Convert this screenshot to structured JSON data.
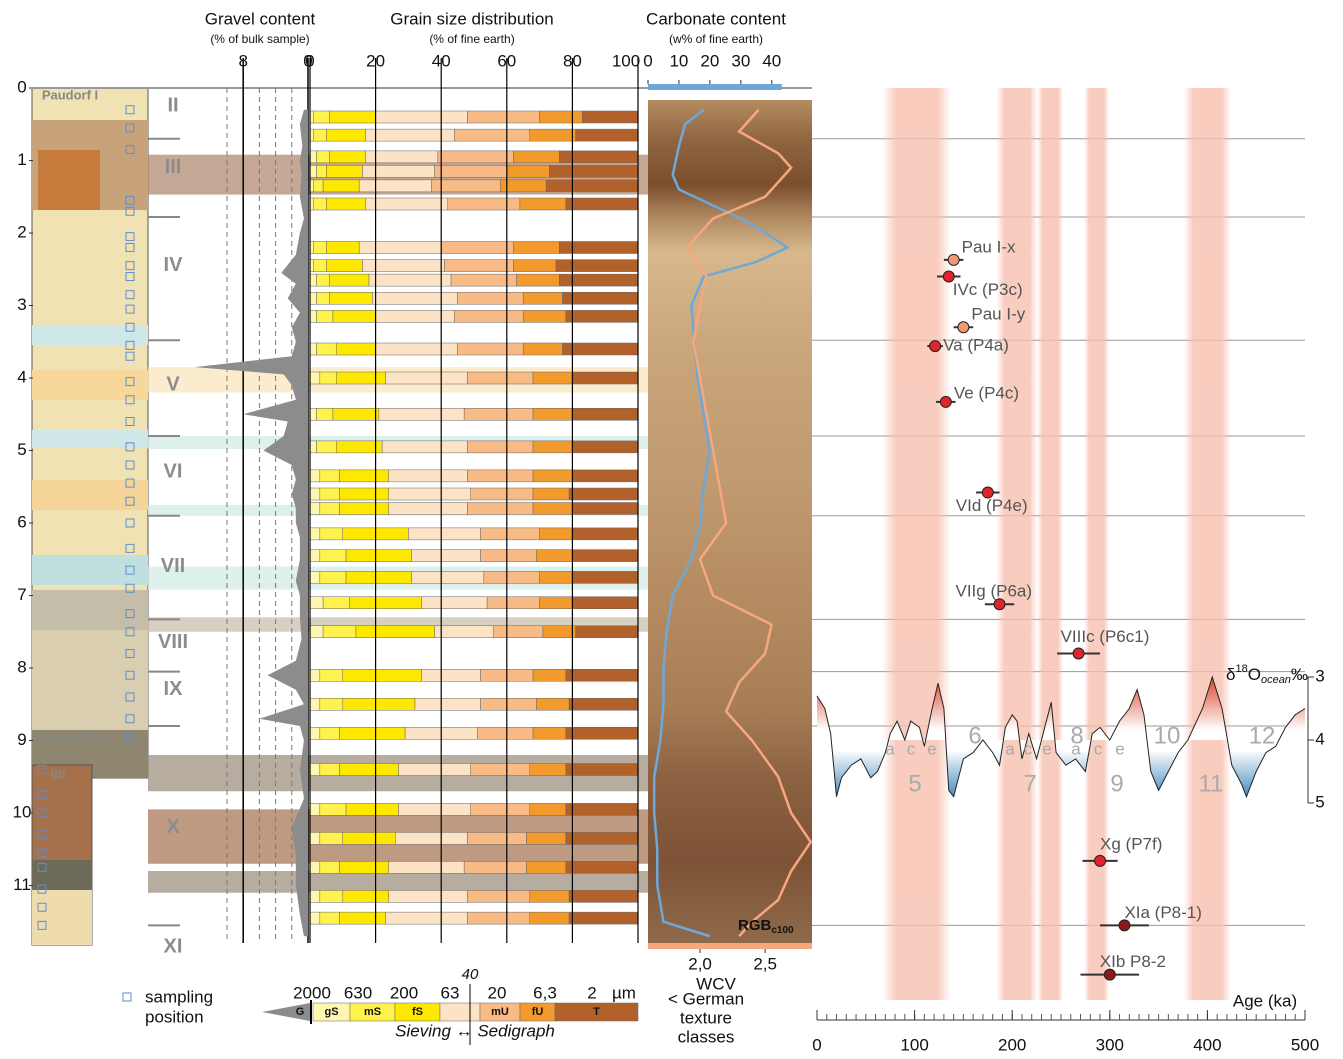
{
  "chart_data": [
    {
      "type": "area",
      "title": "Gravel content",
      "subtitle": "(% of bulk sample)",
      "name": "G",
      "color": "#8c8c8c",
      "xlim": [
        10,
        0
      ],
      "xticks": [
        8,
        0
      ],
      "xgrid": [
        10,
        6,
        4,
        2
      ],
      "ylim": [
        0,
        11.8
      ],
      "yticks": [
        0,
        1,
        2,
        3,
        4,
        5,
        6,
        7,
        8,
        9,
        10,
        11
      ],
      "y": [
        0.3,
        0.5,
        0.8,
        1.0,
        1.2,
        1.5,
        1.8,
        2.0,
        2.3,
        2.55,
        2.7,
        2.9,
        3.1,
        3.3,
        3.5,
        3.7,
        3.85,
        3.95,
        4.1,
        4.3,
        4.5,
        4.6,
        4.8,
        5.0,
        5.2,
        5.4,
        5.6,
        5.8,
        6.0,
        6.2,
        6.5,
        6.8,
        7.0,
        7.3,
        7.6,
        7.9,
        8.1,
        8.3,
        8.5,
        8.7,
        8.8,
        9.0,
        9.4,
        9.8,
        10.2,
        10.6,
        11.0,
        11.4,
        11.7
      ],
      "values": [
        0.5,
        1,
        0.7,
        1,
        0.8,
        1,
        0.5,
        1,
        1.5,
        3.3,
        1.5,
        2.5,
        1,
        2,
        1.5,
        2,
        14,
        3,
        2,
        1.5,
        8,
        2.5,
        3,
        5.5,
        2,
        1.5,
        2,
        1.5,
        1.5,
        1,
        1,
        1.5,
        1,
        1,
        0.8,
        1.5,
        5,
        1.5,
        0.5,
        6,
        1,
        0.5,
        1,
        0.5,
        2,
        1.5,
        1.5,
        1,
        0.5
      ]
    },
    {
      "type": "bar",
      "orientation": "horizontal",
      "stacked": true,
      "title": "Grain size distribution",
      "subtitle": "(% of fine earth)",
      "xlim": [
        0,
        100
      ],
      "xticks": [
        0,
        20,
        40,
        60,
        80,
        100
      ],
      "y": [
        0.4,
        0.65,
        0.95,
        1.15,
        1.35,
        1.6,
        2.2,
        2.45,
        2.65,
        2.9,
        3.15,
        3.6,
        4.0,
        4.5,
        4.95,
        5.35,
        5.6,
        5.8,
        6.15,
        6.45,
        6.75,
        7.1,
        7.5,
        8.1,
        8.5,
        8.9,
        9.4,
        9.95,
        10.35,
        10.75,
        11.15,
        11.45
      ],
      "series": [
        {
          "name": "gS",
          "color": "#fff6b0",
          "values": [
            1,
            1,
            2,
            2,
            1,
            1,
            1,
            1,
            2,
            2,
            2,
            2,
            3,
            2,
            2,
            3,
            3,
            3,
            3,
            3,
            3,
            4,
            4,
            3,
            3,
            3,
            3,
            3,
            3,
            3,
            3,
            3
          ]
        },
        {
          "name": "mS",
          "color": "#fff24d",
          "values": [
            5,
            4,
            4,
            3,
            3,
            4,
            4,
            4,
            4,
            4,
            5,
            6,
            5,
            5,
            6,
            6,
            6,
            6,
            7,
            8,
            8,
            8,
            10,
            7,
            7,
            6,
            6,
            8,
            7,
            6,
            7,
            6
          ]
        },
        {
          "name": "fS",
          "color": "#ffe800",
          "values": [
            14,
            12,
            11,
            11,
            11,
            12,
            10,
            11,
            12,
            13,
            13,
            12,
            15,
            14,
            14,
            15,
            15,
            15,
            20,
            20,
            20,
            22,
            24,
            24,
            22,
            20,
            18,
            16,
            16,
            15,
            14,
            14
          ]
        },
        {
          "color": "#fde3c6",
          "values": [
            28,
            27,
            22,
            22,
            22,
            25,
            25,
            25,
            25,
            26,
            24,
            25,
            25,
            26,
            26,
            24,
            25,
            24,
            22,
            21,
            22,
            20,
            18,
            18,
            20,
            22,
            22,
            22,
            22,
            23,
            24,
            25
          ]
        },
        {
          "name": "mU",
          "color": "#f9bb86",
          "values": [
            22,
            23,
            23,
            22,
            21,
            22,
            22,
            21,
            20,
            20,
            21,
            20,
            20,
            21,
            20,
            20,
            19,
            20,
            18,
            17,
            17,
            16,
            15,
            16,
            17,
            17,
            18,
            18,
            18,
            19,
            19,
            19
          ]
        },
        {
          "name": "fU",
          "color": "#f39a2c",
          "values": [
            13,
            14,
            14,
            13,
            14,
            14,
            14,
            13,
            13,
            12,
            13,
            12,
            12,
            12,
            12,
            12,
            11,
            12,
            10,
            11,
            10,
            10,
            10,
            10,
            10,
            10,
            11,
            11,
            12,
            12,
            12,
            12
          ]
        },
        {
          "name": "T",
          "color": "#b3612b",
          "values": [
            17,
            19,
            24,
            27,
            28,
            22,
            24,
            25,
            24,
            23,
            22,
            23,
            20,
            20,
            20,
            20,
            21,
            20,
            20,
            20,
            20,
            20,
            19,
            22,
            21,
            22,
            22,
            22,
            22,
            22,
            21,
            21
          ]
        }
      ],
      "class_limits": [
        2000,
        630,
        200,
        63,
        20,
        {
          "value": 6.3,
          "label": "6,3"
        },
        2
      ],
      "class_unit": "µm",
      "method_split": 40,
      "method_label": "Sieving ↔ Sedigraph",
      "legend_note": [
        "< German",
        "texture",
        "classes"
      ]
    },
    {
      "type": "line",
      "title": "Carbonate content",
      "subtitle": "(w% of fine earth)",
      "xlim": [
        0,
        53
      ],
      "xticks": [
        0,
        10,
        20,
        30,
        40
      ],
      "x2lim": [
        1.6,
        2.86
      ],
      "x2ticks": [
        {
          "value": 2,
          "label": "2,0"
        },
        {
          "value": 2.5,
          "label": "2,5"
        }
      ],
      "x2label": "WCV",
      "background_label": "RGB",
      "background_label_sub": "c100",
      "series": [
        {
          "color": "#6fa8d8",
          "y": [
            0.3,
            0.5,
            0.8,
            1.0,
            1.2,
            1.4,
            1.6,
            1.8,
            2.0,
            2.2,
            2.4,
            2.6,
            3.0,
            3.5,
            4.0,
            4.5,
            5.0,
            5.5,
            6.0,
            6.5,
            7.0,
            7.5,
            8.0,
            8.5,
            9.0,
            9.5,
            10.0,
            10.5,
            11.0,
            11.5,
            11.7
          ],
          "values": [
            18,
            12,
            10,
            9,
            8,
            10,
            20,
            30,
            38,
            45,
            35,
            18,
            14,
            15,
            16,
            18,
            20,
            18,
            17,
            14,
            8,
            6,
            5,
            5,
            4,
            2,
            2,
            3,
            3,
            5,
            20
          ]
        },
        {
          "color": "#f6a77e",
          "axis": "x2",
          "y": [
            0.3,
            0.6,
            0.9,
            1.1,
            1.3,
            1.5,
            1.8,
            2.2,
            2.6,
            3.0,
            3.5,
            4.0,
            4.5,
            5.0,
            5.5,
            6.0,
            6.5,
            7.0,
            7.4,
            7.8,
            8.2,
            8.6,
            9.0,
            9.5,
            10.0,
            10.4,
            10.8,
            11.2,
            11.5,
            11.7
          ],
          "values": [
            2.45,
            2.3,
            2.6,
            2.7,
            2.6,
            2.5,
            2.1,
            1.9,
            2.05,
            2.0,
            1.95,
            2.0,
            2.05,
            2.1,
            2.15,
            2.2,
            2.0,
            2.1,
            2.55,
            2.5,
            2.3,
            2.2,
            2.4,
            2.6,
            2.7,
            2.85,
            2.7,
            2.6,
            2.4,
            2.3
          ]
        }
      ]
    },
    {
      "type": "scatter",
      "xlabel": "Age (ka)",
      "xlim": [
        0,
        500
      ],
      "xticks": [
        0,
        100,
        200,
        300,
        400,
        500
      ],
      "interglacials": [
        [
          73,
          131
        ],
        [
          190,
          220
        ],
        [
          232,
          246
        ],
        [
          280,
          293
        ],
        [
          382,
          418
        ]
      ],
      "interglacial_color": "#f7bfae",
      "samples": [
        {
          "label": "Pau I-x",
          "age": 140,
          "error": 10,
          "depth": 2.37,
          "color": "#f09a72"
        },
        {
          "label": "IVc (P3c)",
          "age": 135,
          "error": 12,
          "depth": 2.6,
          "color": "#e0242b"
        },
        {
          "label": "Pau I-y",
          "age": 150,
          "error": 10,
          "depth": 3.3,
          "color": "#f09a72"
        },
        {
          "label": "Va (P4a)",
          "age": 121,
          "error": 8,
          "depth": 3.56,
          "color": "#e0242b"
        },
        {
          "label": "Ve (P4c)",
          "age": 132,
          "error": 10,
          "depth": 4.33,
          "color": "#e0242b"
        },
        {
          "label": "VId (P4e)",
          "age": 175,
          "error": 12,
          "depth": 5.58,
          "color": "#e0242b"
        },
        {
          "label": "VIIg (P6a)",
          "age": 187,
          "error": 15,
          "depth": 7.12,
          "color": "#e0242b"
        },
        {
          "label": "VIIIc (P6c1)",
          "age": 268,
          "error": 22,
          "depth": 7.8,
          "color": "#e0242b"
        },
        {
          "label": "Xg (P7f)",
          "age": 290,
          "error": 18,
          "depth": 10.66,
          "color": "#e0242b"
        },
        {
          "label": "XIa (P8-1)",
          "age": 315,
          "error": 25,
          "depth": 11.55,
          "color": "#8b1a1a"
        },
        {
          "label": "XIb P8-2",
          "age": 300,
          "error": 30,
          "depth": 12.23,
          "color": "#8b1a1a"
        }
      ]
    },
    {
      "type": "line",
      "ylabel": [
        "δ",
        "18",
        "O",
        "ocean",
        "‰"
      ],
      "xlim": [
        0,
        500
      ],
      "ylim": [
        3,
        5
      ],
      "yticks": [
        3,
        4,
        5
      ],
      "x": [
        0,
        8,
        14,
        20,
        25,
        35,
        45,
        55,
        62,
        70,
        75,
        82,
        90,
        96,
        105,
        110,
        118,
        124,
        130,
        135,
        140,
        150,
        160,
        170,
        180,
        187,
        193,
        200,
        205,
        210,
        217,
        225,
        235,
        240,
        245,
        255,
        265,
        275,
        282,
        290,
        300,
        310,
        320,
        328,
        335,
        342,
        350,
        360,
        370,
        380,
        395,
        405,
        415,
        425,
        435,
        440,
        450,
        460,
        470,
        480,
        490,
        500
      ],
      "values": [
        3.3,
        3.5,
        3.9,
        4.9,
        4.6,
        4.4,
        4.3,
        4.6,
        4.5,
        4.2,
        3.9,
        3.7,
        4.0,
        3.7,
        3.8,
        4.1,
        3.5,
        3.1,
        3.5,
        4.8,
        4.9,
        4.3,
        4.2,
        4.0,
        4.2,
        4.4,
        3.8,
        3.6,
        3.7,
        4.3,
        3.9,
        4.3,
        3.7,
        3.4,
        4.2,
        4.4,
        4.3,
        4.5,
        3.9,
        3.8,
        4.0,
        3.7,
        3.5,
        3.2,
        3.6,
        4.5,
        4.8,
        4.5,
        4.2,
        4.0,
        3.5,
        3.0,
        3.5,
        4.4,
        4.7,
        4.9,
        4.5,
        4.2,
        4.1,
        3.8,
        3.6,
        3.5
      ],
      "stages": [
        "5",
        "6",
        "7",
        "8",
        "9",
        "10",
        "11",
        "12"
      ],
      "substages": [
        "a",
        "c",
        "e",
        "a",
        "c",
        "e",
        "a",
        "c",
        "e"
      ]
    }
  ],
  "stratigraphy": {
    "units": [
      "II",
      "III",
      "IV",
      "V",
      "VI",
      "VII",
      "VIII",
      "IX",
      "X",
      "XI"
    ],
    "boundaries": [
      0.7,
      1.78,
      3.48,
      4.8,
      5.9,
      7.33,
      8.05,
      8.8,
      11.55
    ],
    "bands": [
      {
        "from": 0.92,
        "to": 1.47,
        "color": "#b08a70"
      },
      {
        "from": 3.85,
        "to": 4.2,
        "color": "#fbe6bd"
      },
      {
        "from": 4.8,
        "to": 4.98,
        "color": "#d3ebe6"
      },
      {
        "from": 5.75,
        "to": 5.9,
        "color": "#d3ebe6"
      },
      {
        "from": 6.6,
        "to": 6.92,
        "color": "#d3ebe6"
      },
      {
        "from": 7.3,
        "to": 7.5,
        "color": "#c9bfae"
      },
      {
        "from": 9.2,
        "to": 9.7,
        "color": "#9e9280"
      },
      {
        "from": 9.95,
        "to": 10.7,
        "color": "#a9785a"
      },
      {
        "from": 10.8,
        "to": 11.1,
        "color": "#9e9280"
      }
    ],
    "profile_labels": [
      "Paudorf I",
      "Paudorf IIa",
      "IIb"
    ],
    "sampling_legend": [
      "sampling",
      "position"
    ]
  }
}
